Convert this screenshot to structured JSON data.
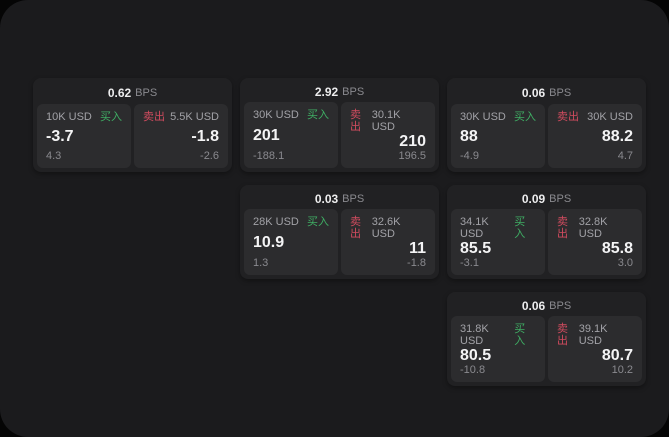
{
  "labels": {
    "bps_unit": "BPS",
    "buy": "买入",
    "sell": "卖出"
  },
  "colors": {
    "page_bg": "#050505",
    "container_bg": "#1b1b1d",
    "card_bg": "#212123",
    "panel_bg": "#2c2c2e",
    "buy_green": "#3fae64",
    "sell_red": "#d14b5f"
  },
  "cards": [
    {
      "row": 1,
      "col": 1,
      "bps": "0.62",
      "buy": {
        "amount": "10K USD",
        "value": "-3.7",
        "sub": "4.3"
      },
      "sell": {
        "amount": "5.5K USD",
        "value": "-1.8",
        "sub": "-2.6"
      }
    },
    {
      "row": 1,
      "col": 2,
      "bps": "2.92",
      "buy": {
        "amount": "30K USD",
        "value": "201",
        "sub": "-188.1"
      },
      "sell": {
        "amount": "30.1K USD",
        "value": "210",
        "sub": "196.5"
      }
    },
    {
      "row": 1,
      "col": 3,
      "bps": "0.06",
      "buy": {
        "amount": "30K USD",
        "value": "88",
        "sub": "-4.9"
      },
      "sell": {
        "amount": "30K USD",
        "value": "88.2",
        "sub": "4.7"
      }
    },
    {
      "row": 2,
      "col": 2,
      "bps": "0.03",
      "buy": {
        "amount": "28K USD",
        "value": "10.9",
        "sub": "1.3"
      },
      "sell": {
        "amount": "32.6K USD",
        "value": "11",
        "sub": "-1.8"
      }
    },
    {
      "row": 2,
      "col": 3,
      "bps": "0.09",
      "buy": {
        "amount": "34.1K USD",
        "value": "85.5",
        "sub": "-3.1"
      },
      "sell": {
        "amount": "32.8K USD",
        "value": "85.8",
        "sub": "3.0"
      }
    },
    {
      "row": 3,
      "col": 3,
      "bps": "0.06",
      "buy": {
        "amount": "31.8K USD",
        "value": "80.5",
        "sub": "-10.8"
      },
      "sell": {
        "amount": "39.1K USD",
        "value": "80.7",
        "sub": "10.2"
      }
    }
  ]
}
